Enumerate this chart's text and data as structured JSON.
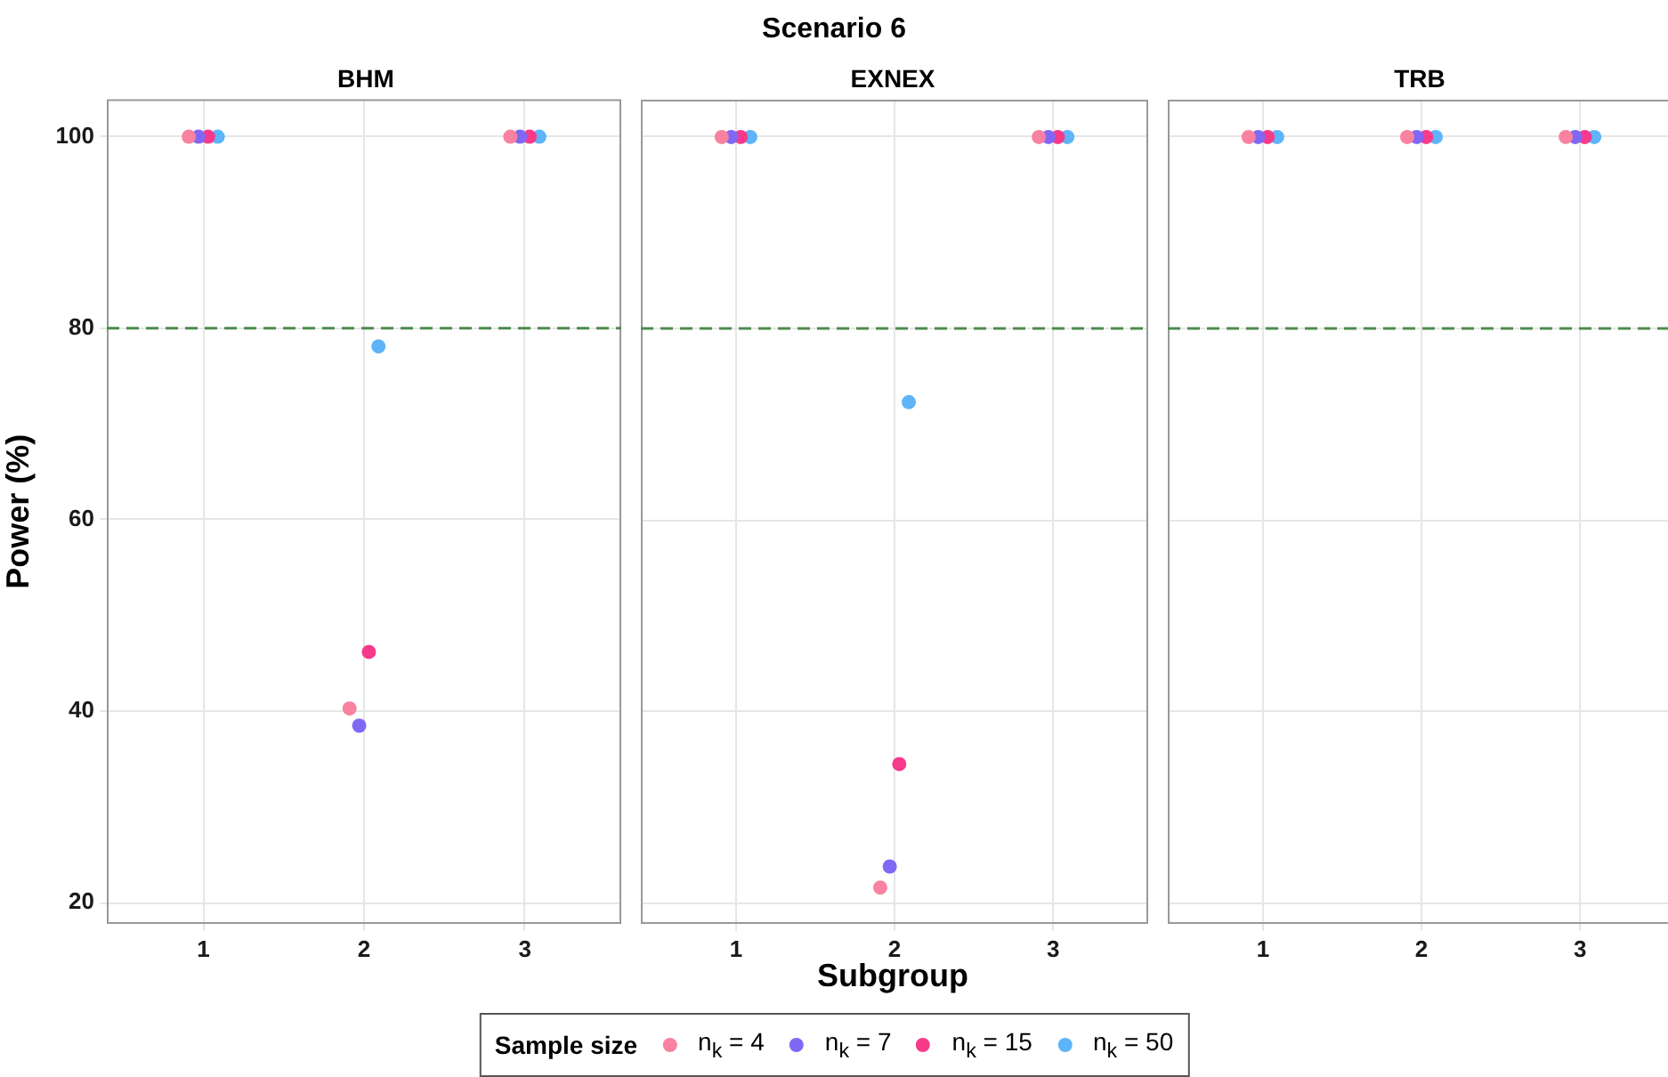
{
  "chart_data": [
    {
      "type": "scatter",
      "subtitle": "BHM",
      "ylabel": "Power (%)",
      "legend_title": "Sample size",
      "legend": "bottom",
      "marker": "circle",
      "grid": true,
      "xlim": [
        0.4,
        3.6
      ],
      "xticks": [
        1,
        2,
        3
      ],
      "ylim": [
        17.8,
        103.9
      ],
      "yticks": [
        20,
        40,
        60,
        80,
        100
      ],
      "ref_lines": [
        {
          "axis": "y",
          "value": 80,
          "color": "#4e8b4e",
          "line_style": "dashed"
        }
      ],
      "series": [
        {
          "name": "n$_{k}$ = 4",
          "color": "#f8829f",
          "x": [
            0.91,
            1.91,
            2.91
          ],
          "values": [
            100,
            40.3,
            100
          ]
        },
        {
          "name": "n$_{k}$ = 7",
          "color": "#8068f5",
          "x": [
            0.97,
            1.97,
            2.97
          ],
          "values": [
            100,
            38.5,
            100
          ]
        },
        {
          "name": "n$_{k}$ = 15",
          "color": "#f73b8a",
          "x": [
            1.03,
            2.03,
            3.03
          ],
          "values": [
            100,
            46.2,
            100
          ]
        },
        {
          "name": "n$_{k}$ = 50",
          "color": "#5db4f8",
          "x": [
            1.09,
            2.09,
            3.09
          ],
          "values": [
            100,
            78.1,
            100
          ]
        }
      ]
    },
    {
      "type": "scatter",
      "title": "Scenario 6",
      "subtitle": "EXNEX",
      "xlabel": "Subgroup",
      "marker": "circle",
      "grid": true,
      "tick_labels": "x",
      "xlim": [
        0.4,
        3.6
      ],
      "xticks": [
        1,
        2,
        3
      ],
      "ylim": [
        17.8,
        103.9
      ],
      "yticks": [
        20,
        40,
        60,
        80,
        100
      ],
      "ref_lines": [
        {
          "axis": "y",
          "value": 80,
          "color": "#4e8b4e",
          "line_style": "dashed"
        }
      ],
      "series": [
        {
          "color": "#f8829f",
          "x": [
            0.91,
            1.91,
            2.91
          ],
          "values": [
            100,
            21.6,
            100
          ]
        },
        {
          "color": "#8068f5",
          "x": [
            0.97,
            1.97,
            2.97
          ],
          "values": [
            100,
            23.8,
            100
          ]
        },
        {
          "color": "#f73b8a",
          "x": [
            1.03,
            2.03,
            3.03
          ],
          "values": [
            100,
            34.5,
            100
          ]
        },
        {
          "color": "#5db4f8",
          "x": [
            1.09,
            2.09,
            3.09
          ],
          "values": [
            100,
            72.3,
            100
          ]
        }
      ]
    },
    {
      "type": "scatter",
      "subtitle": "TRB",
      "marker": "circle",
      "grid": true,
      "tick_labels": "x",
      "xlim": [
        0.4,
        3.6
      ],
      "xticks": [
        1,
        2,
        3
      ],
      "ylim": [
        17.8,
        103.9
      ],
      "yticks": [
        20,
        40,
        60,
        80,
        100
      ],
      "ref_lines": [
        {
          "axis": "y",
          "value": 80,
          "color": "#4e8b4e",
          "line_style": "dashed"
        }
      ],
      "series": [
        {
          "color": "#f8829f",
          "x": [
            0.91,
            1.91,
            2.91
          ],
          "values": [
            100,
            100,
            100
          ]
        },
        {
          "color": "#8068f5",
          "x": [
            0.97,
            1.97,
            2.97
          ],
          "values": [
            100,
            100,
            100
          ]
        },
        {
          "color": "#f73b8a",
          "x": [
            1.03,
            2.03,
            3.03
          ],
          "values": [
            100,
            100,
            100
          ]
        },
        {
          "color": "#5db4f8",
          "x": [
            1.09,
            2.09,
            3.09
          ],
          "values": [
            100,
            100,
            100
          ]
        }
      ]
    }
  ]
}
